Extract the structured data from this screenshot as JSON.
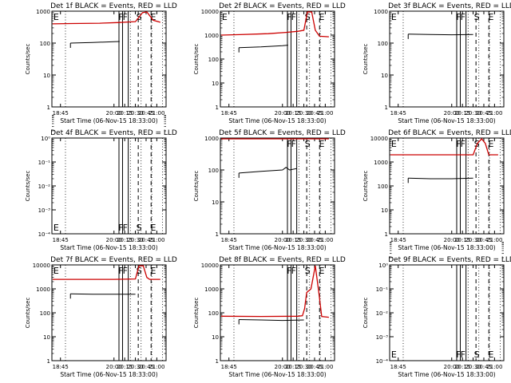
{
  "colors": {
    "events": "#000000",
    "lld": "#cc0000",
    "axis": "#000000"
  },
  "x_axis": {
    "ticks": [
      "18:45",
      "20:00",
      "20:15",
      "20:30",
      "20:45",
      "21:00"
    ],
    "label": "Start Time (06-Nov-15 18:33:00)"
  },
  "chart_data": [
    {
      "type": "line",
      "title": "Det 1f BLACK = Events, RED = LLD",
      "ylabel": "Counts/sec",
      "yscale": "log",
      "yticks": [
        "1",
        "10",
        "100",
        "1000"
      ],
      "ytick_powers": [
        0,
        1,
        2,
        3
      ],
      "ylim_log10": [
        0,
        3
      ],
      "markers": [
        "E",
        "F",
        "F",
        "S",
        "E"
      ],
      "series": [
        {
          "role": "events",
          "x": [
            "18:59",
            "19:30",
            "20:00",
            "20:08"
          ],
          "y": [
            100,
            105,
            110,
            112
          ]
        },
        {
          "role": "lld",
          "x": [
            "18:34",
            "19:00",
            "19:40",
            "20:05",
            "20:22",
            "20:30",
            "20:40",
            "20:46",
            "20:55",
            "21:05"
          ],
          "y": [
            400,
            410,
            420,
            440,
            460,
            470,
            900,
            1000,
            520,
            450
          ]
        }
      ]
    },
    {
      "type": "line",
      "title": "Det 2f BLACK = Events, RED = LLD",
      "ylabel": "Counts/sec",
      "yscale": "log",
      "yticks": [
        "1",
        "10",
        "100",
        "1000",
        "10000"
      ],
      "ytick_powers": [
        0,
        1,
        2,
        3,
        4
      ],
      "ylim_log10": [
        0,
        4
      ],
      "markers": [
        "E",
        "F",
        "F",
        "S",
        "E"
      ],
      "series": [
        {
          "role": "events",
          "x": [
            "18:59",
            "19:30",
            "20:00",
            "20:08"
          ],
          "y": [
            300,
            320,
            360,
            380
          ]
        },
        {
          "role": "lld",
          "x": [
            "18:34",
            "19:00",
            "19:40",
            "20:05",
            "20:22",
            "20:30",
            "20:35",
            "20:41",
            "20:46",
            "20:52",
            "21:05"
          ],
          "y": [
            1000,
            1050,
            1150,
            1300,
            1450,
            1600,
            12000,
            12000,
            1600,
            900,
            850
          ]
        }
      ]
    },
    {
      "type": "line",
      "title": "Det 3f BLACK = Events, RED = LLD",
      "ylabel": "Counts/sec",
      "yscale": "log",
      "yticks": [
        "1",
        "10",
        "100",
        "1000"
      ],
      "ytick_powers": [
        0,
        1,
        2,
        3
      ],
      "ylim_log10": [
        0,
        3
      ],
      "markers": [
        "E",
        "F",
        "F",
        "S",
        "E"
      ],
      "series": [
        {
          "role": "events",
          "x": [
            "18:59",
            "19:30",
            "20:00",
            "20:30"
          ],
          "y": [
            190,
            185,
            182,
            185
          ]
        }
      ]
    },
    {
      "type": "line",
      "title": "Det 4f BLACK = Events, RED = LLD",
      "ylabel": "Counts/sec",
      "yscale": "log",
      "yticks": [
        "10⁰",
        "10⁻¹",
        "10⁻²",
        "10⁻³",
        "10⁻⁴"
      ],
      "ytick_powers": [
        0,
        -1,
        -2,
        -3,
        -4
      ],
      "ylim_log10": [
        -4,
        0
      ],
      "yticks_top_down": true,
      "markers": [
        "E",
        "F",
        "F",
        "S",
        "E"
      ],
      "series": []
    },
    {
      "type": "line",
      "title": "Det 5f BLACK = Events, RED = LLD",
      "ylabel": "Counts/sec",
      "yscale": "log",
      "yticks": [
        "1",
        "10",
        "100",
        "1000"
      ],
      "ytick_powers": [
        0,
        1,
        2,
        3
      ],
      "ylim_log10": [
        0,
        3
      ],
      "markers": [
        "F",
        "F",
        "S",
        "E"
      ],
      "series": [
        {
          "role": "events",
          "x": [
            "18:59",
            "19:30",
            "20:00",
            "20:05",
            "20:10",
            "20:20"
          ],
          "y": [
            80,
            90,
            100,
            120,
            100,
            110
          ]
        },
        {
          "role": "lld",
          "x": [
            "18:34",
            "21:05"
          ],
          "y": [
            1000,
            1000
          ]
        }
      ]
    },
    {
      "type": "line",
      "title": "Det 6f BLACK = Events, RED = LLD",
      "ylabel": "Counts/sec",
      "yscale": "log",
      "yticks": [
        "1",
        "10",
        "100",
        "1000",
        "10000"
      ],
      "ytick_powers": [
        0,
        1,
        2,
        3,
        4
      ],
      "ylim_log10": [
        0,
        4
      ],
      "markers": [
        "E",
        "F",
        "F",
        "S",
        "E"
      ],
      "series": [
        {
          "role": "events",
          "x": [
            "18:59",
            "19:30",
            "20:00",
            "20:30"
          ],
          "y": [
            210,
            200,
            200,
            210
          ]
        },
        {
          "role": "lld",
          "x": [
            "18:34",
            "20:30",
            "20:36",
            "20:42",
            "20:47",
            "20:52",
            "21:05"
          ],
          "y": [
            2000,
            2000,
            6000,
            11000,
            6000,
            2000,
            2000
          ]
        }
      ]
    },
    {
      "type": "line",
      "title": "Det 7f BLACK = Events, RED = LLD",
      "ylabel": "Counts/sec",
      "yscale": "log",
      "yticks": [
        "1",
        "10",
        "100",
        "1000",
        "10000"
      ],
      "ytick_powers": [
        0,
        1,
        2,
        3,
        4
      ],
      "ylim_log10": [
        0,
        4
      ],
      "markers": [
        "E",
        "F",
        "F",
        "S",
        "E"
      ],
      "series": [
        {
          "role": "events",
          "x": [
            "18:59",
            "19:30",
            "20:00",
            "20:30"
          ],
          "y": [
            620,
            600,
            600,
            600
          ]
        },
        {
          "role": "lld",
          "x": [
            "18:34",
            "20:00",
            "20:30",
            "20:35",
            "20:41",
            "20:46",
            "20:50",
            "21:05"
          ],
          "y": [
            2500,
            2500,
            2600,
            9000,
            12000,
            3000,
            2500,
            2500
          ]
        }
      ]
    },
    {
      "type": "line",
      "title": "Det 8f BLACK = Events, RED = LLD",
      "ylabel": "Counts/sec",
      "yscale": "log",
      "yticks": [
        "1",
        "10",
        "100",
        "1000",
        "10000"
      ],
      "ytick_powers": [
        0,
        1,
        2,
        3,
        4
      ],
      "ylim_log10": [
        0,
        4
      ],
      "markers": [
        "F",
        "F",
        "S",
        "E"
      ],
      "series": [
        {
          "role": "events",
          "x": [
            "18:59",
            "19:30",
            "20:00",
            "20:30"
          ],
          "y": [
            52,
            50,
            48,
            50
          ]
        },
        {
          "role": "lld",
          "x": [
            "18:34",
            "19:30",
            "20:22",
            "20:28",
            "20:31",
            "20:34",
            "20:40",
            "20:46",
            "20:51",
            "20:55",
            "21:05"
          ],
          "y": [
            72,
            70,
            72,
            75,
            150,
            700,
            1000,
            12000,
            700,
            70,
            65
          ]
        }
      ]
    },
    {
      "type": "line",
      "title": "Det 9f BLACK = Events, RED = LLD",
      "ylabel": "Counts/sec",
      "yscale": "log",
      "yticks": [
        "10⁰",
        "10⁻¹",
        "10⁻²",
        "10⁻³",
        "10⁻⁴"
      ],
      "ytick_powers": [
        0,
        -1,
        -2,
        -3,
        -4
      ],
      "ylim_log10": [
        -4,
        0
      ],
      "yticks_top_down": true,
      "markers": [
        "E",
        "F",
        "F",
        "S",
        "E"
      ],
      "series": []
    }
  ]
}
